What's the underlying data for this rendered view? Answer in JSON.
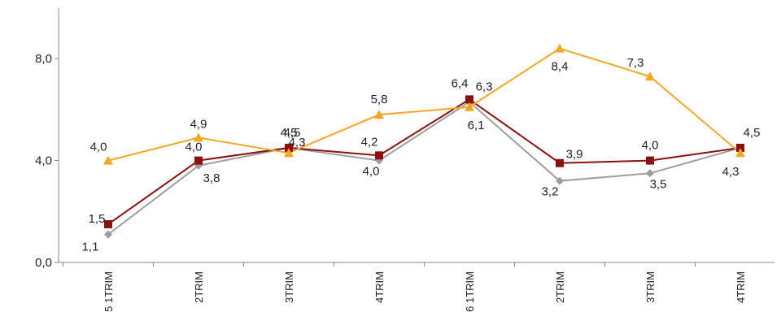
{
  "chart_data": {
    "type": "line",
    "categories": [
      "5 1TRIM",
      "2TRIM",
      "3TRIM",
      "4TRIM",
      "6 1TRIM",
      "2TRIM",
      "3TRIM",
      "4TRIM"
    ],
    "ylim": [
      0,
      10
    ],
    "yticks": [
      "0,0",
      "4,0",
      "8,0"
    ],
    "ytick_values": [
      0,
      4,
      8
    ],
    "grid": false,
    "legend": "none",
    "series": [
      {
        "color": "#f5a623",
        "marker": "triangle",
        "values": [
          4.0,
          4.9,
          4.3,
          5.8,
          6.1,
          8.4,
          7.3,
          4.3
        ],
        "labels": [
          "4,0",
          "4,9",
          "4,3",
          "5,8",
          "6,1",
          "8,4",
          "7,3",
          "4,3"
        ]
      },
      {
        "color": "#8b1010",
        "marker": "square",
        "values": [
          1.5,
          4.0,
          4.5,
          4.2,
          6.4,
          3.9,
          4.0,
          4.5
        ],
        "labels": [
          "1,5",
          "4,0",
          "4,5",
          "4,2",
          "6,4",
          "3,9",
          "4,0",
          "4,5"
        ]
      },
      {
        "color": "#9e9e9e",
        "marker": "diamond",
        "values": [
          1.1,
          3.8,
          4.5,
          4.0,
          6.3,
          3.2,
          3.5,
          4.5
        ],
        "labels": [
          "1,1",
          "3,8",
          "4,5",
          "4,0",
          "6,3",
          "3,2",
          "3,5",
          ""
        ]
      }
    ]
  }
}
